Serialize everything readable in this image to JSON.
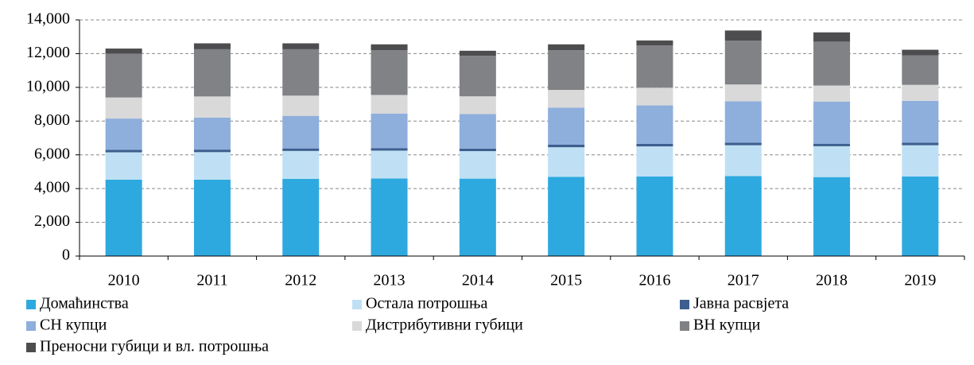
{
  "chart_data": {
    "type": "stacked_bar",
    "categories": [
      "2010",
      "2011",
      "2012",
      "2013",
      "2014",
      "2015",
      "2016",
      "2017",
      "2018",
      "2019"
    ],
    "series": [
      {
        "name": "Домаћинства",
        "color": "#2ea9df",
        "values": [
          4530,
          4530,
          4580,
          4600,
          4590,
          4700,
          4720,
          4740,
          4680,
          4720
        ]
      },
      {
        "name": "Остала потрошња",
        "color": "#bfe0f4",
        "values": [
          1620,
          1630,
          1650,
          1650,
          1630,
          1750,
          1780,
          1830,
          1830,
          1850
        ]
      },
      {
        "name": "Јавна расвјета",
        "color": "#3c5f8f",
        "values": [
          150,
          150,
          150,
          150,
          150,
          150,
          150,
          150,
          150,
          150
        ]
      },
      {
        "name": "СН купци",
        "color": "#8eaedc",
        "values": [
          1850,
          1900,
          1930,
          2050,
          2050,
          2200,
          2280,
          2450,
          2500,
          2480
        ]
      },
      {
        "name": "Дистрибутивни губици",
        "color": "#d9d9d9",
        "values": [
          1250,
          1250,
          1200,
          1100,
          1050,
          1050,
          1050,
          1000,
          950,
          950
        ]
      },
      {
        "name": "ВН купци",
        "color": "#808285",
        "values": [
          2600,
          2800,
          2750,
          2650,
          2400,
          2350,
          2500,
          2600,
          2600,
          1750
        ]
      },
      {
        "name": "Преносни губици и вл. потрошња",
        "color": "#4d4d4f",
        "values": [
          300,
          350,
          350,
          350,
          300,
          350,
          300,
          600,
          550,
          330
        ]
      }
    ],
    "ylim": [
      0,
      14000
    ],
    "yticks": [
      0,
      {
        "value": 2000,
        "label": "2,000"
      },
      {
        "value": 4000,
        "label": "4,000"
      },
      {
        "value": 6000,
        "label": "6,000"
      },
      {
        "value": 8000,
        "label": "8,000"
      },
      {
        "value": 10000,
        "label": "10,000"
      },
      {
        "value": 12000,
        "label": "12,000"
      },
      {
        "value": 14000,
        "label": "14,000"
      }
    ],
    "grid": true
  }
}
